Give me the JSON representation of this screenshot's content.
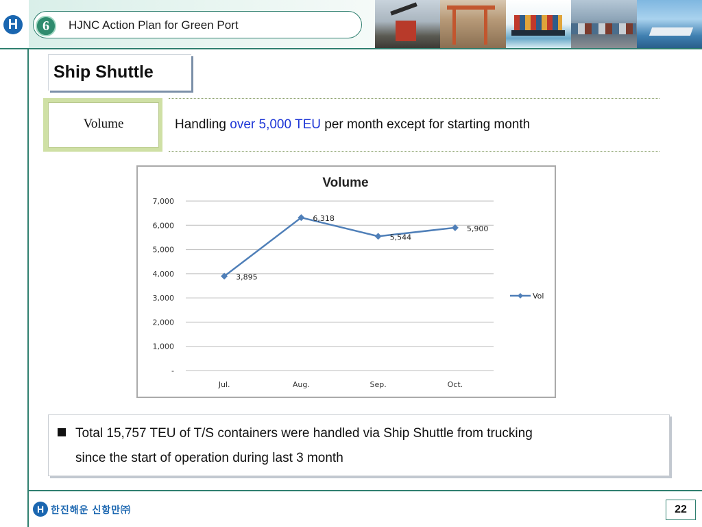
{
  "header": {
    "section_number": "6",
    "title": "HJNC Action Plan for Green Port",
    "logo_letter": "H",
    "photos": [
      "port-crane-photo",
      "gantry-crane-photo",
      "container-ship-photo",
      "container-yard-photo",
      "harbor-ship-photo"
    ]
  },
  "section": {
    "title": "Ship Shuttle"
  },
  "volume": {
    "label": "Volume",
    "headline_pre": "Handling ",
    "headline_highlight": "over 5,000 TEU",
    "headline_post": " per month except for starting month",
    "highlight_color": "#1c35d6"
  },
  "chart_data": {
    "type": "line",
    "title": "Volume",
    "categories": [
      "Jul.",
      "Aug.",
      "Sep.",
      "Oct."
    ],
    "series": [
      {
        "name": "Vol",
        "values": [
          3895,
          6318,
          5544,
          5900
        ],
        "labels": [
          "3,895",
          "6,318",
          "5,544",
          "5,900"
        ],
        "color": "#4f7fb8"
      }
    ],
    "yticks": [
      "-",
      "1,000",
      "2,000",
      "3,000",
      "4,000",
      "5,000",
      "6,000",
      "7,000"
    ],
    "ylim": [
      0,
      7000
    ],
    "grid": true,
    "legend": "right"
  },
  "note": {
    "line1": "Total 15,757 TEU of T/S containers were handled via Ship Shuttle from trucking",
    "line2": "since the start of operation during last 3 month"
  },
  "footer": {
    "logo_letter": "H",
    "company": "한진해운 신항만㈜",
    "page_number": "22"
  }
}
